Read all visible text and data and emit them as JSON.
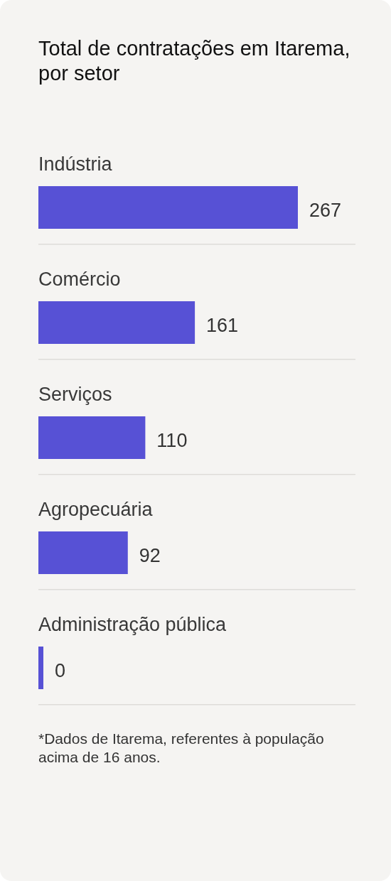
{
  "chart_data": {
    "type": "bar",
    "orientation": "horizontal",
    "title": "Total de contratações em Itarema, por setor",
    "categories": [
      "Indústria",
      "Comércio",
      "Serviços",
      "Agropecuária",
      "Administração pública"
    ],
    "values": [
      267,
      161,
      110,
      92,
      0
    ],
    "color": "#5751d5",
    "data_labels": true,
    "annotations": [
      "*Dados de Itarema, referentes à população acima de 16 anos."
    ]
  }
}
